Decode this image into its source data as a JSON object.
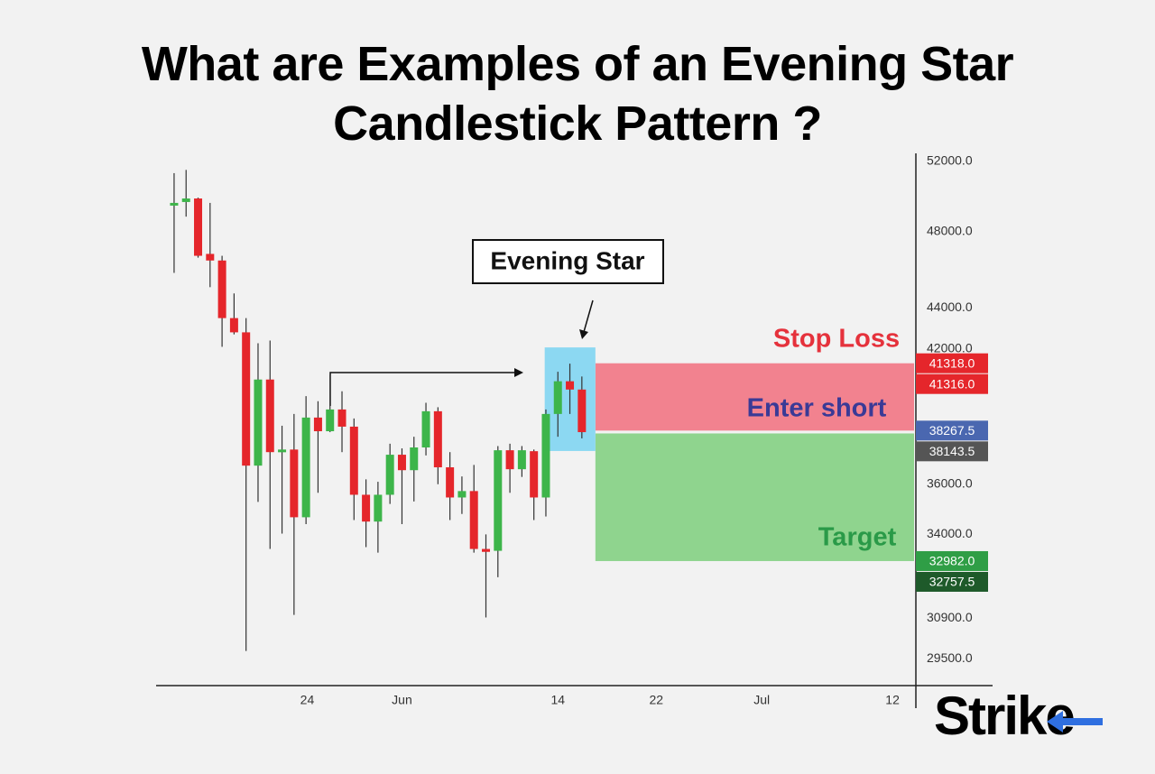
{
  "chart_data": {
    "type": "candlestick",
    "title": "What are Examples of an Evening Star Candlestick Pattern ?",
    "log_scale": true,
    "ylim": [
      28620,
      52480
    ],
    "yticks": [
      {
        "value": 52000,
        "label": "52000.0"
      },
      {
        "value": 48000,
        "label": "48000.0"
      },
      {
        "value": 44000,
        "label": "44000.0"
      },
      {
        "value": 42000,
        "label": "42000.0"
      },
      {
        "value": 36000,
        "label": "36000.0"
      },
      {
        "value": 34000,
        "label": "34000.0"
      },
      {
        "value": 30900,
        "label": "30900.0"
      },
      {
        "value": 29500,
        "label": "29500.0"
      }
    ],
    "xlim": [
      -1.5,
      61.7
    ],
    "xticks": [
      {
        "value": 11.1,
        "label": "24"
      },
      {
        "value": 19,
        "label": "Jun"
      },
      {
        "value": 32,
        "label": "14"
      },
      {
        "value": 40.2,
        "label": "22"
      },
      {
        "value": 49,
        "label": "Jul"
      },
      {
        "value": 59.9,
        "label": "12"
      }
    ],
    "up_color": "#3db54a",
    "down_color": "#e5262b",
    "candles": {
      "open": [
        49540,
        49650,
        49850,
        46800,
        46450,
        43500,
        42800,
        36770,
        40560,
        37380,
        37450,
        34670,
        38840,
        38240,
        39200,
        38440,
        35570,
        34500,
        35570,
        37230,
        36580,
        37540,
        39120,
        36700,
        35460,
        35720,
        33440,
        33370,
        37420,
        36620,
        37380,
        35460,
        39000,
        40480,
        40100
      ],
      "high": [
        51310,
        51500,
        49900,
        49600,
        46700,
        44740,
        43500,
        42270,
        42400,
        38480,
        39000,
        39800,
        39570,
        40770,
        40020,
        38800,
        36200,
        36100,
        37700,
        37500,
        38000,
        39500,
        39300,
        37340,
        36320,
        36800,
        34000,
        37600,
        37700,
        37600,
        37450,
        39200,
        40920,
        41300,
        40700
      ],
      "low": [
        45800,
        48830,
        46600,
        45060,
        42100,
        42700,
        29770,
        35280,
        33440,
        34030,
        31020,
        34400,
        35650,
        38200,
        37340,
        34560,
        33510,
        33300,
        35200,
        34400,
        35300,
        37200,
        36000,
        34560,
        34800,
        33300,
        30930,
        32380,
        35650,
        36300,
        34560,
        34700,
        38000,
        39000,
        37930
      ],
      "close": [
        49600,
        49850,
        46700,
        46450,
        43500,
        42800,
        36770,
        40560,
        37340,
        37450,
        34670,
        38840,
        38240,
        39200,
        38440,
        35570,
        34500,
        35570,
        37230,
        36580,
        37540,
        39120,
        36700,
        35460,
        35720,
        33440,
        33330,
        37420,
        36620,
        37420,
        35460,
        39000,
        40480,
        40100,
        38200
      ]
    },
    "zones": [
      {
        "from": 41318,
        "to": 38267.5,
        "color": "#f2828f"
      },
      {
        "from": 38143.5,
        "to": 32982,
        "color": "#8fd48e"
      }
    ],
    "price_labels": [
      {
        "value": 41318,
        "label": "41318.0",
        "color": "#e5262b"
      },
      {
        "value": 41316,
        "label": "41316.0",
        "color": "#e5262b"
      },
      {
        "value": 38267.5,
        "label": "38267.5",
        "color": "#4a67b0"
      },
      {
        "value": 38143.5,
        "label": "38143.5",
        "color": "#555555"
      },
      {
        "value": 32982,
        "label": "32982.0",
        "color": "#2f9e46"
      },
      {
        "value": 32757.5,
        "label": "32757.5",
        "color": "#1e5a2a"
      }
    ],
    "annotations": {
      "evening_star": "Evening Star",
      "stop_loss": "Stop Loss",
      "enter_short": "Enter short",
      "target": "Target"
    },
    "logo": "Strike"
  }
}
